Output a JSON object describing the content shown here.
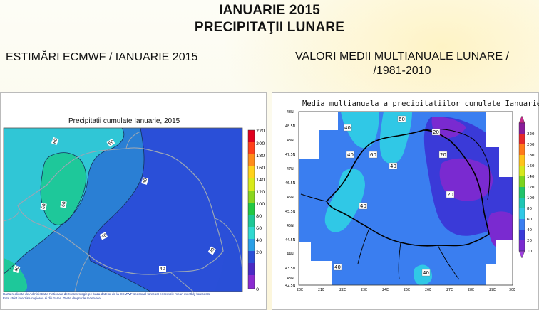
{
  "slide": {
    "title_line1": "IANUARIE 2015",
    "title_line2": "PRECIPITAŢII LUNARE",
    "left_heading": "ESTIMĂRI ECMWF / IANUARIE 2015",
    "right_heading_line1": "VALORI MEDII MULTIANUALE LUNARE /",
    "right_heading_line2": "/1981-2010"
  },
  "left_map": {
    "title": "Precipitatii cumulate Ianuarie, 2015",
    "credit_line1": "Harta realizata de Administratia Nationala de Meteorologie pe baza datelor de la ECMWF seasonal forecast ensemble mean monthly forecasts.",
    "credit_line2": "Este strict interzisa copierea si difuzarea. Toate drepturile rezervate.",
    "contour_labels": [
      "60",
      "60",
      "60",
      "60",
      "40",
      "40",
      "40",
      "20",
      "40",
      "60",
      "60"
    ],
    "colorbar_ticks": [
      "220",
      "200",
      "180",
      "160",
      "140",
      "120",
      "100",
      "80",
      "60",
      "40",
      "20",
      "0"
    ],
    "colorbar_colors": [
      "#e0001e",
      "#ff3f1a",
      "#ff8c1a",
      "#ffd21a",
      "#d8ea1a",
      "#8ad61e",
      "#22c842",
      "#1ec896",
      "#30d9d0",
      "#2a9fe6",
      "#2a4fd8",
      "#4a2ac4",
      "#8a2ad0"
    ]
  },
  "right_map": {
    "title": "Media multianuala a precipitatiilor cumulate Ianuarie",
    "lat_ticks": [
      "48N",
      "47.5N",
      "47N",
      "46.5N",
      "46N",
      "45.5N",
      "45N",
      "44.5N",
      "44N",
      "43.5N",
      "43N",
      "42.5N",
      "48.5N"
    ],
    "lon_ticks": [
      "20E",
      "21E",
      "22E",
      "23E",
      "24E",
      "25E",
      "26E",
      "27E",
      "28E",
      "29E",
      "30E"
    ],
    "contour_labels": [
      "40",
      "60",
      "40",
      "60",
      "40",
      "20",
      "20",
      "20",
      "40",
      "40",
      "40"
    ],
    "colorbar_ticks": [
      "220",
      "200",
      "180",
      "160",
      "140",
      "120",
      "100",
      "80",
      "60",
      "40",
      "20",
      "10"
    ],
    "colorbar_colors": [
      "#c8288c",
      "#8a1c9a",
      "#e6282a",
      "#ff7a1a",
      "#ffc41a",
      "#d6e81c",
      "#7cd41e",
      "#22c46a",
      "#1ec6b4",
      "#30c8e6",
      "#3a7ef0",
      "#3a3ad8",
      "#7a2ad0"
    ]
  }
}
